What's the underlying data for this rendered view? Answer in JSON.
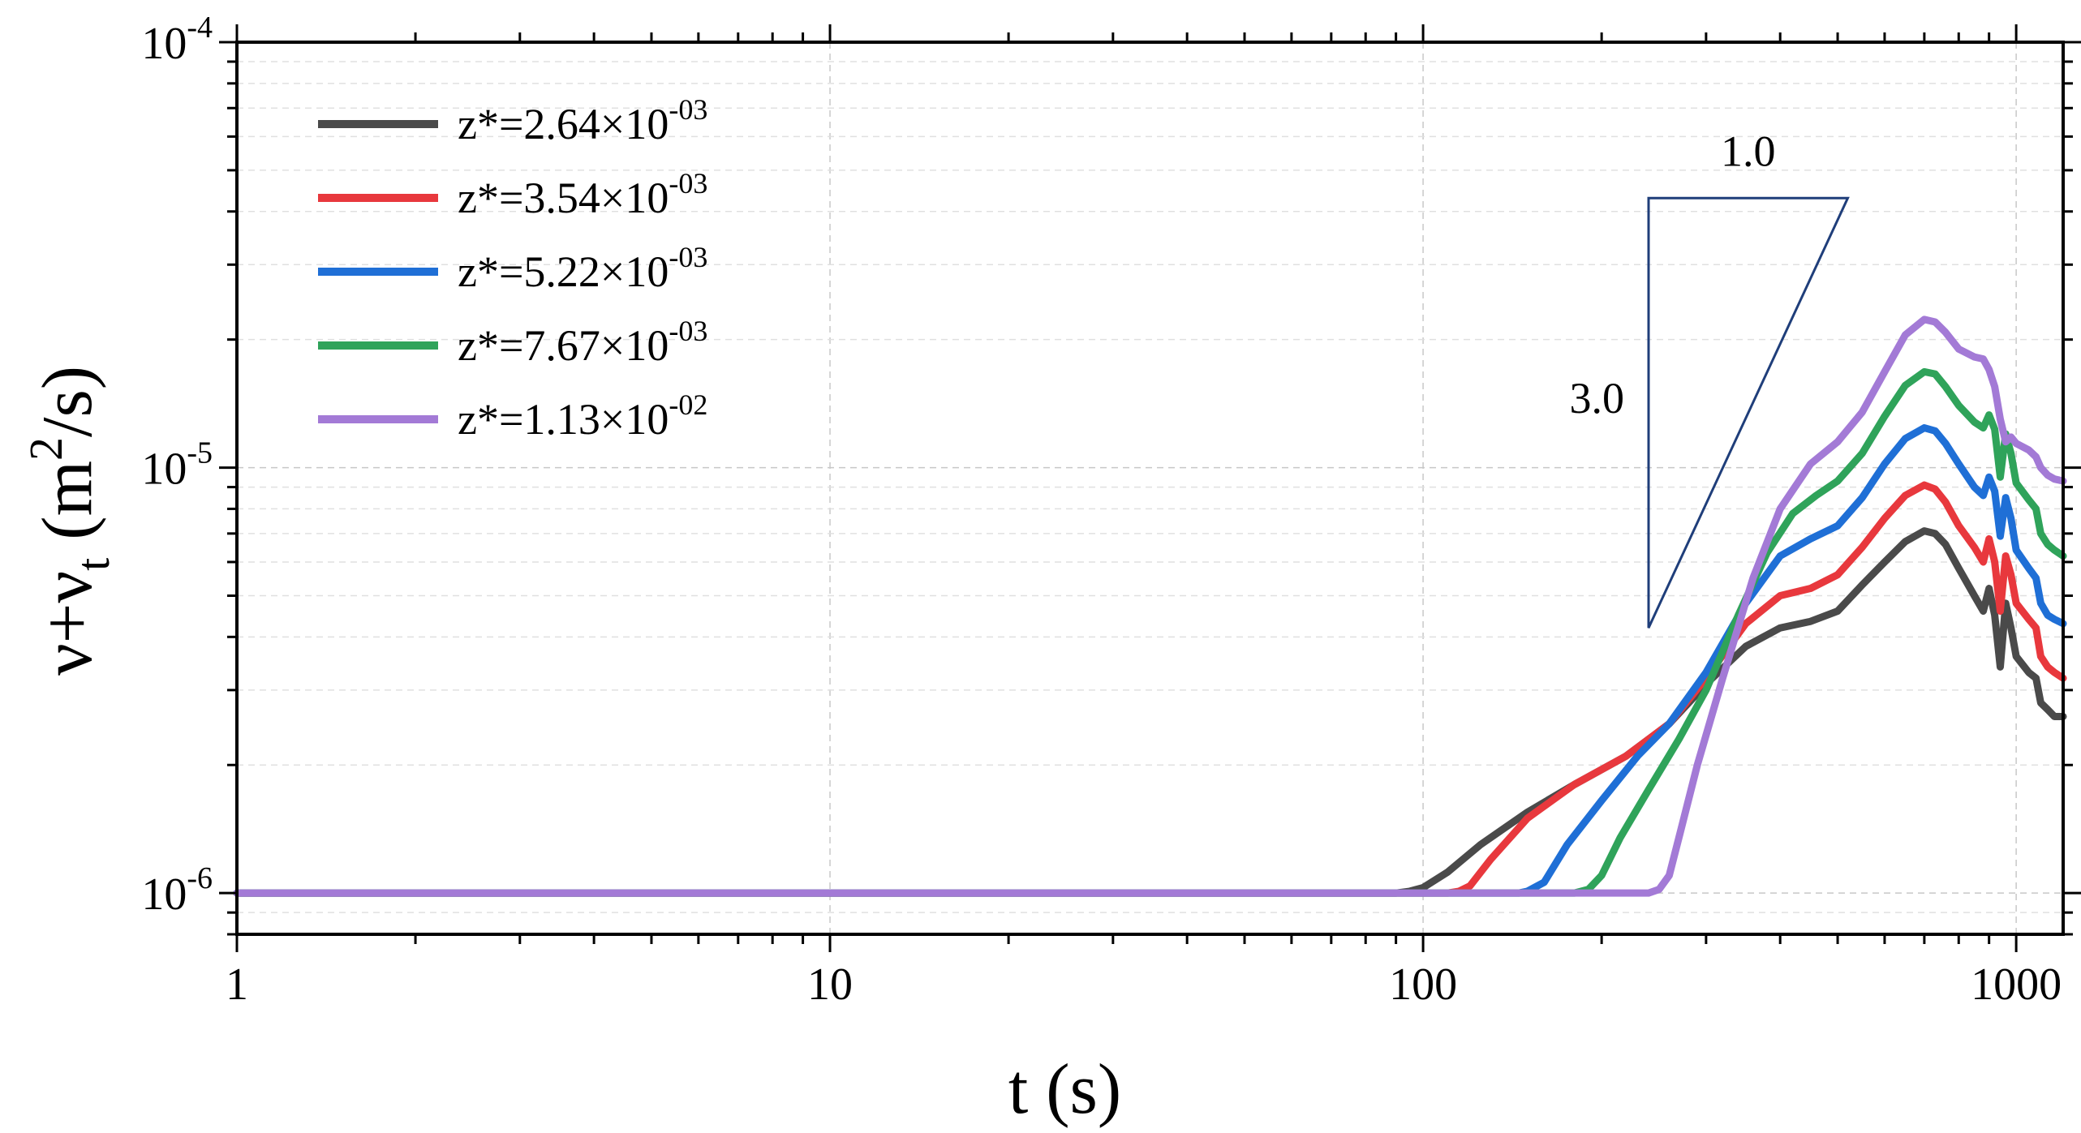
{
  "chart_data": {
    "type": "line",
    "title": "",
    "xlabel": "t (s)",
    "ylabel_main": "ν+ν",
    "ylabel_sub": "t",
    "ylabel_unit_pre": " (m",
    "ylabel_unit_sup": "2",
    "ylabel_unit_post": "/s)",
    "x_scale": "log",
    "y_scale": "log",
    "xlim": [
      1,
      1200
    ],
    "ylim": [
      8e-07,
      0.0001
    ],
    "grid": true,
    "legend_position": "top-left",
    "x_ticks": [
      {
        "value": 1,
        "label": "1"
      },
      {
        "value": 10,
        "label": "10"
      },
      {
        "value": 100,
        "label": "100"
      },
      {
        "value": 1000,
        "label": "1000"
      }
    ],
    "y_ticks": [
      {
        "value": 1e-06,
        "base": "10",
        "exp": "-6"
      },
      {
        "value": 1e-05,
        "base": "10",
        "exp": "-5"
      },
      {
        "value": 0.0001,
        "base": "10",
        "exp": "-4"
      }
    ],
    "series": [
      {
        "name": "z*=2.64×10-03",
        "prefix": "z*=2.64×10",
        "exp": "-03",
        "color": "#4a4a4a",
        "x": [
          1,
          90,
          95,
          100,
          110,
          125,
          150,
          180,
          220,
          260,
          300,
          350,
          400,
          450,
          500,
          550,
          600,
          650,
          700,
          730,
          760,
          800,
          850,
          880,
          900,
          920,
          940,
          960,
          980,
          1000,
          1050,
          1080,
          1100,
          1130,
          1160,
          1200
        ],
        "y": [
          1e-06,
          1e-06,
          1.01e-06,
          1.03e-06,
          1.12e-06,
          1.3e-06,
          1.55e-06,
          1.8e-06,
          2.1e-06,
          2.5e-06,
          3.1e-06,
          3.8e-06,
          4.2e-06,
          4.35e-06,
          4.6e-06,
          5.3e-06,
          6e-06,
          6.7e-06,
          7.1e-06,
          7e-06,
          6.6e-06,
          5.8e-06,
          5e-06,
          4.6e-06,
          5.2e-06,
          4.5e-06,
          3.4e-06,
          4.8e-06,
          4.2e-06,
          3.6e-06,
          3.3e-06,
          3.2e-06,
          2.8e-06,
          2.7e-06,
          2.6e-06,
          2.6e-06
        ]
      },
      {
        "name": "z*=3.54×10-03",
        "prefix": "z*=3.54×10",
        "exp": "-03",
        "color": "#e8383d",
        "x": [
          1,
          110,
          115,
          120,
          130,
          150,
          180,
          220,
          260,
          300,
          350,
          400,
          450,
          500,
          550,
          600,
          650,
          700,
          730,
          760,
          800,
          850,
          880,
          900,
          920,
          940,
          960,
          980,
          1000,
          1050,
          1080,
          1100,
          1130,
          1160,
          1200
        ],
        "y": [
          1e-06,
          1e-06,
          1.01e-06,
          1.04e-06,
          1.2e-06,
          1.5e-06,
          1.8e-06,
          2.1e-06,
          2.5e-06,
          3.2e-06,
          4.3e-06,
          5e-06,
          5.2e-06,
          5.6e-06,
          6.5e-06,
          7.6e-06,
          8.6e-06,
          9.1e-06,
          8.9e-06,
          8.3e-06,
          7.3e-06,
          6.5e-06,
          6e-06,
          6.8e-06,
          6e-06,
          4.6e-06,
          6.2e-06,
          5.6e-06,
          4.8e-06,
          4.4e-06,
          4.2e-06,
          3.6e-06,
          3.4e-06,
          3.3e-06,
          3.2e-06
        ]
      },
      {
        "name": "z*=5.22×10-03",
        "prefix": "z*=5.22×10",
        "exp": "-03",
        "color": "#1f6fd6",
        "x": [
          1,
          145,
          150,
          160,
          175,
          200,
          230,
          260,
          300,
          350,
          400,
          450,
          500,
          550,
          600,
          650,
          700,
          730,
          760,
          800,
          850,
          880,
          900,
          920,
          940,
          960,
          980,
          1000,
          1050,
          1080,
          1100,
          1130,
          1160,
          1200
        ],
        "y": [
          1e-06,
          1e-06,
          1.01e-06,
          1.06e-06,
          1.3e-06,
          1.65e-06,
          2.1e-06,
          2.5e-06,
          3.3e-06,
          4.8e-06,
          6.2e-06,
          6.8e-06,
          7.3e-06,
          8.5e-06,
          1.02e-05,
          1.17e-05,
          1.24e-05,
          1.22e-05,
          1.14e-05,
          1.02e-05,
          9e-06,
          8.6e-06,
          9.5e-06,
          8.8e-06,
          6.9e-06,
          8.5e-06,
          7.6e-06,
          6.4e-06,
          5.8e-06,
          5.5e-06,
          4.8e-06,
          4.5e-06,
          4.4e-06,
          4.3e-06
        ]
      },
      {
        "name": "z*=7.67×10-03",
        "prefix": "z*=7.67×10",
        "exp": "-03",
        "color": "#2fa35a",
        "x": [
          1,
          180,
          190,
          200,
          215,
          240,
          270,
          300,
          340,
          380,
          420,
          460,
          500,
          550,
          600,
          650,
          700,
          730,
          760,
          800,
          850,
          880,
          900,
          920,
          940,
          960,
          980,
          1000,
          1050,
          1080,
          1100,
          1130,
          1160,
          1200
        ],
        "y": [
          1e-06,
          1e-06,
          1.02e-06,
          1.1e-06,
          1.35e-06,
          1.75e-06,
          2.3e-06,
          3e-06,
          4.5e-06,
          6.3e-06,
          7.8e-06,
          8.6e-06,
          9.3e-06,
          1.08e-05,
          1.32e-05,
          1.56e-05,
          1.68e-05,
          1.66e-05,
          1.55e-05,
          1.4e-05,
          1.28e-05,
          1.24e-05,
          1.33e-05,
          1.23e-05,
          9.5e-06,
          1.2e-05,
          1.08e-05,
          9.2e-06,
          8.4e-06,
          8e-06,
          7e-06,
          6.6e-06,
          6.4e-06,
          6.2e-06
        ]
      },
      {
        "name": "z*=1.13×10-02",
        "prefix": "z*=1.13×10",
        "exp": "-02",
        "color": "#a37ad6",
        "x": [
          1,
          240,
          250,
          260,
          270,
          290,
          320,
          360,
          400,
          450,
          500,
          550,
          600,
          650,
          700,
          730,
          760,
          800,
          850,
          880,
          900,
          920,
          940,
          960,
          980,
          1000,
          1050,
          1080,
          1100,
          1130,
          1160,
          1200
        ],
        "y": [
          1e-06,
          1e-06,
          1.02e-06,
          1.1e-06,
          1.35e-06,
          2e-06,
          3.2e-06,
          5.5e-06,
          8e-06,
          1.02e-05,
          1.15e-05,
          1.35e-05,
          1.68e-05,
          2.05e-05,
          2.23e-05,
          2.2e-05,
          2.08e-05,
          1.9e-05,
          1.82e-05,
          1.8e-05,
          1.7e-05,
          1.55e-05,
          1.3e-05,
          1.15e-05,
          1.18e-05,
          1.14e-05,
          1.1e-05,
          1.06e-05,
          1e-05,
          9.6e-06,
          9.4e-06,
          9.3e-06
        ]
      }
    ],
    "annotations": {
      "slope_triangle": {
        "vertices": [
          [
            240,
            4.2e-06
          ],
          [
            240,
            4.3e-05
          ],
          [
            520,
            4.3e-05
          ]
        ],
        "color": "#1f3e7a",
        "horizontal_label": "1.0",
        "vertical_label": "3.0"
      }
    }
  }
}
